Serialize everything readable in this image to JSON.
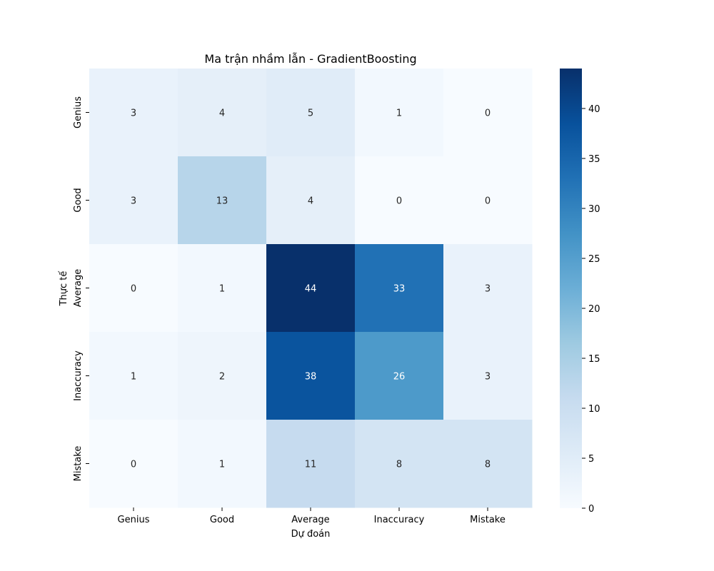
{
  "chart_data": {
    "type": "heatmap",
    "title": "Ma trận nhầm lẫn - GradientBoosting",
    "xlabel": "Dự đoán",
    "ylabel": "Thực tế",
    "x_categories": [
      "Genius",
      "Good",
      "Average",
      "Inaccuracy",
      "Mistake"
    ],
    "y_categories": [
      "Genius",
      "Good",
      "Average",
      "Inaccuracy",
      "Mistake"
    ],
    "matrix": [
      [
        3,
        4,
        5,
        1,
        0
      ],
      [
        3,
        13,
        4,
        0,
        0
      ],
      [
        0,
        1,
        44,
        33,
        3
      ],
      [
        1,
        2,
        38,
        26,
        3
      ],
      [
        0,
        1,
        11,
        8,
        8
      ]
    ],
    "colormap": "Blues",
    "vmin": 0,
    "vmax": 44,
    "colorbar_ticks": [
      0,
      5,
      10,
      15,
      20,
      25,
      30,
      35,
      40
    ]
  }
}
